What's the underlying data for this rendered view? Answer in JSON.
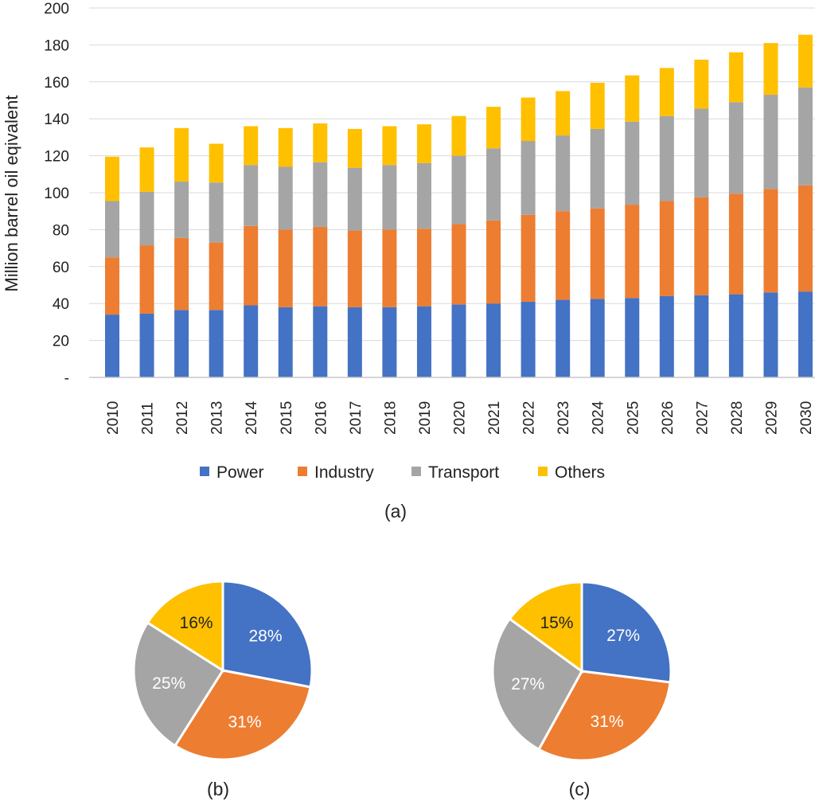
{
  "chart_data": [
    {
      "type": "bar",
      "stacked": true,
      "panel_label": "(a)",
      "title": "",
      "xlabel": "",
      "ylabel": "Million barrel oil eqivalent",
      "ylim": [
        0,
        200
      ],
      "yticks": [
        "-",
        "20",
        "40",
        "60",
        "80",
        "100",
        "120",
        "140",
        "160",
        "180",
        "200"
      ],
      "grid": true,
      "legend_position": "bottom",
      "categories": [
        "2010",
        "2011",
        "2012",
        "2013",
        "2014",
        "2015",
        "2016",
        "2017",
        "2018",
        "2019",
        "2020",
        "2021",
        "2022",
        "2023",
        "2024",
        "2025",
        "2026",
        "2027",
        "2028",
        "2029",
        "2030"
      ],
      "series": [
        {
          "name": "Power",
          "color": "#4472C4",
          "values": [
            34,
            34.5,
            36.5,
            36.5,
            39,
            38,
            38.5,
            38,
            38,
            38.5,
            39.5,
            40,
            41,
            42,
            42.5,
            43,
            44,
            44.5,
            45,
            46,
            46.5
          ]
        },
        {
          "name": "Industry",
          "color": "#ED7D31",
          "values": [
            31,
            37,
            39,
            36.5,
            43,
            42,
            43,
            41.5,
            42,
            42,
            43.5,
            45,
            47,
            48,
            49,
            50.5,
            51.5,
            53,
            54.5,
            56,
            57.5
          ]
        },
        {
          "name": "Transport",
          "color": "#A5A5A5",
          "values": [
            30.5,
            29,
            30.5,
            32.5,
            33,
            34,
            35,
            34,
            35,
            35.5,
            37,
            39,
            40,
            41,
            43,
            45,
            46,
            48,
            49.5,
            51,
            53
          ]
        },
        {
          "name": "Others",
          "color": "#FFC000",
          "values": [
            24,
            24,
            29,
            21,
            21,
            21,
            21,
            21,
            21,
            21,
            21.5,
            22.5,
            23.5,
            24,
            25,
            25,
            26,
            26.5,
            27,
            28,
            28.5
          ]
        }
      ]
    },
    {
      "type": "pie",
      "panel_label": "(b)",
      "categories": [
        "Power",
        "Industry",
        "Transport",
        "Others"
      ],
      "values": [
        28,
        31,
        25,
        16
      ],
      "labels": [
        "28%",
        "31%",
        "25%",
        "16%"
      ],
      "colors": [
        "#4472C4",
        "#ED7D31",
        "#A5A5A5",
        "#FFC000"
      ]
    },
    {
      "type": "pie",
      "panel_label": "(c)",
      "categories": [
        "Power",
        "Industry",
        "Transport",
        "Others"
      ],
      "values": [
        27,
        31,
        27,
        15
      ],
      "labels": [
        "27%",
        "31%",
        "27%",
        "15%"
      ],
      "colors": [
        "#4472C4",
        "#ED7D31",
        "#A5A5A5",
        "#FFC000"
      ]
    }
  ]
}
